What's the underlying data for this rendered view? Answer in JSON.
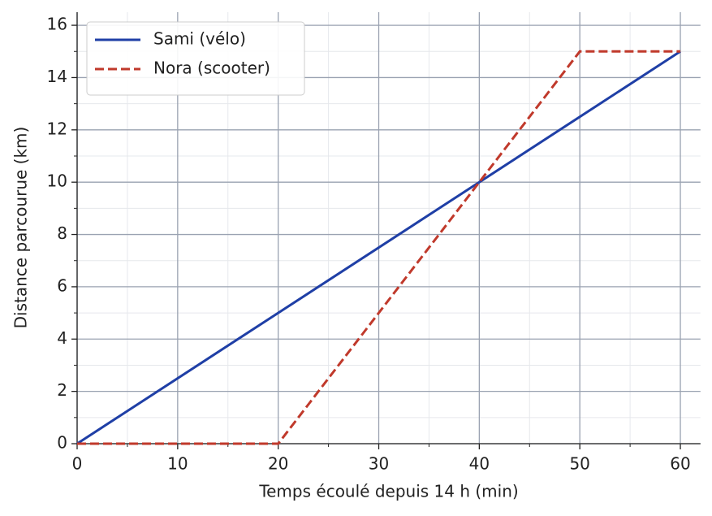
{
  "chart_data": {
    "type": "line",
    "xlabel": "Temps écoulé depuis 14 h (min)",
    "ylabel": "Distance parcourue (km)",
    "xlim": [
      0,
      62
    ],
    "ylim": [
      0,
      16.5
    ],
    "xticks": [
      0,
      10,
      20,
      30,
      40,
      50,
      60
    ],
    "yticks": [
      0,
      2,
      4,
      6,
      8,
      10,
      12,
      14,
      16
    ],
    "minor_xticks": [
      5,
      15,
      25,
      35,
      45,
      55
    ],
    "minor_yticks": [
      1,
      3,
      5,
      7,
      9,
      11,
      13,
      15
    ],
    "grid": true,
    "minor_grid": true,
    "legend": "upper left",
    "series": [
      {
        "name": "Sami (vélo)",
        "color": "#1f3fa6",
        "dash": "solid",
        "x": [
          0,
          60
        ],
        "values": [
          0,
          15
        ]
      },
      {
        "name": "Nora (scooter)",
        "color": "#c0392b",
        "dash": "dashed",
        "x": [
          0,
          20,
          50,
          60
        ],
        "values": [
          0,
          0,
          15,
          15
        ]
      }
    ]
  }
}
